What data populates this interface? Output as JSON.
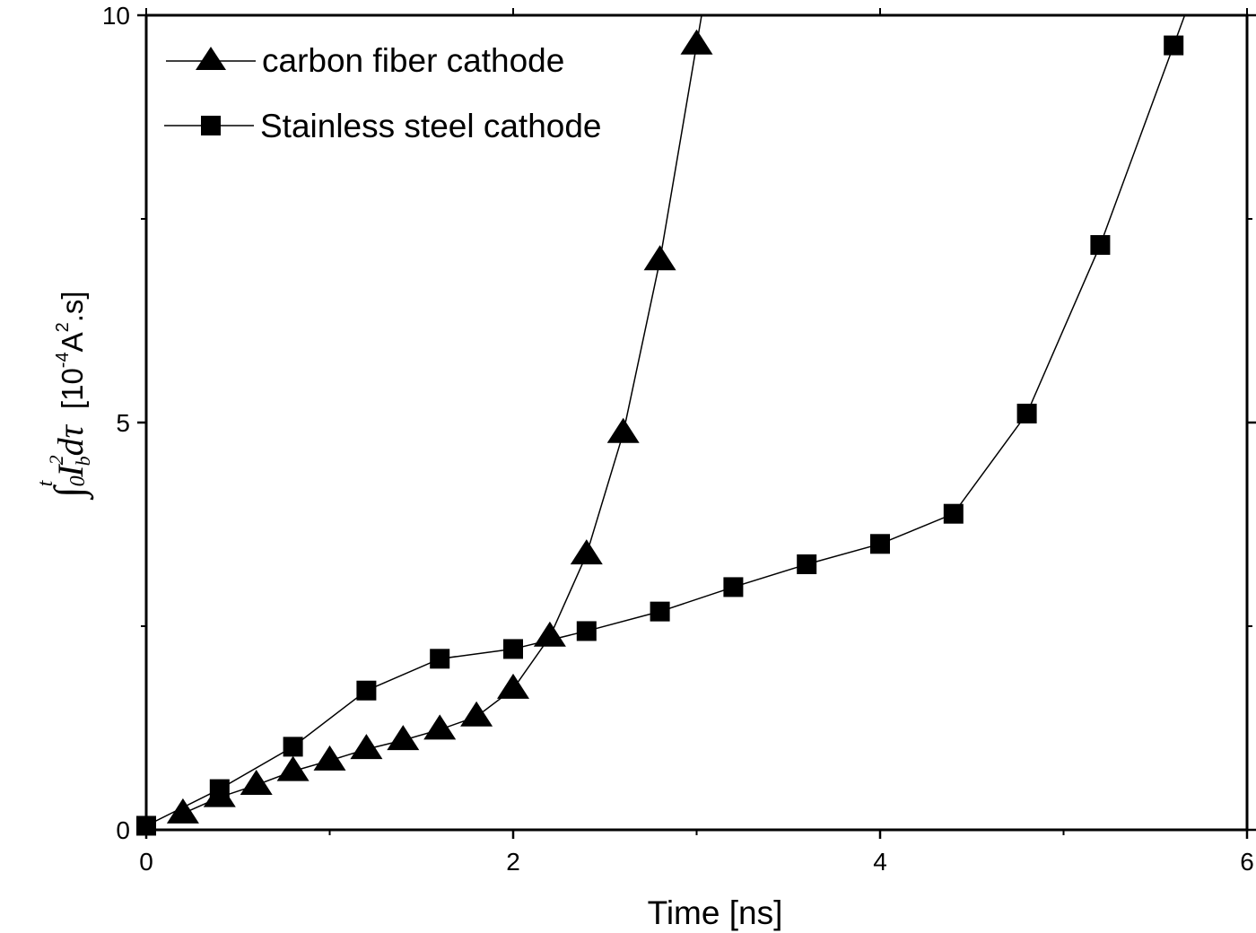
{
  "chart_data": {
    "type": "line",
    "title": "",
    "xlabel": "Time [ns]",
    "ylabel": {
      "integral": "∫",
      "lower": "0",
      "upper": "t",
      "var": "I",
      "sup": "2",
      "sub": "b",
      "dtau": "dτ",
      "unit_pre": "[10",
      "unit_exp": "-4",
      "unit_mid": "A",
      "unit_exp2": "2",
      "unit_post": ".s]"
    },
    "xlim": [
      0,
      6
    ],
    "ylim": [
      0,
      10
    ],
    "xticks": [
      0,
      2,
      4,
      6
    ],
    "xticklabels": [
      "0",
      "2",
      "4",
      "6"
    ],
    "xminor": [
      1,
      3,
      5
    ],
    "yticks": [
      0,
      5,
      10
    ],
    "yticklabels": [
      "0",
      "5",
      "10"
    ],
    "yminor": [
      2.5,
      7.5
    ],
    "grid": false,
    "legend_position": "top-left",
    "series": [
      {
        "name": "carbon fiber cathode",
        "marker": "triangle",
        "x": [
          0.2,
          0.4,
          0.6,
          0.8,
          1.0,
          1.2,
          1.4,
          1.6,
          1.8,
          2.0,
          2.2,
          2.4,
          2.6,
          2.8,
          3.0
        ],
        "y": [
          0.2,
          0.4,
          0.55,
          0.72,
          0.85,
          0.99,
          1.1,
          1.23,
          1.39,
          1.73,
          2.37,
          3.38,
          4.87,
          6.99,
          9.64
        ]
      },
      {
        "name": "Stainless steel cathode",
        "marker": "square",
        "x": [
          0,
          0.4,
          0.8,
          1.2,
          1.6,
          2.0,
          2.4,
          2.8,
          3.2,
          3.6,
          4.0,
          4.4,
          4.8,
          5.2,
          5.6
        ],
        "y": [
          0.05,
          0.5,
          1.02,
          1.71,
          2.1,
          2.22,
          2.44,
          2.68,
          2.98,
          3.26,
          3.51,
          3.88,
          5.11,
          7.18,
          9.63
        ]
      }
    ]
  }
}
